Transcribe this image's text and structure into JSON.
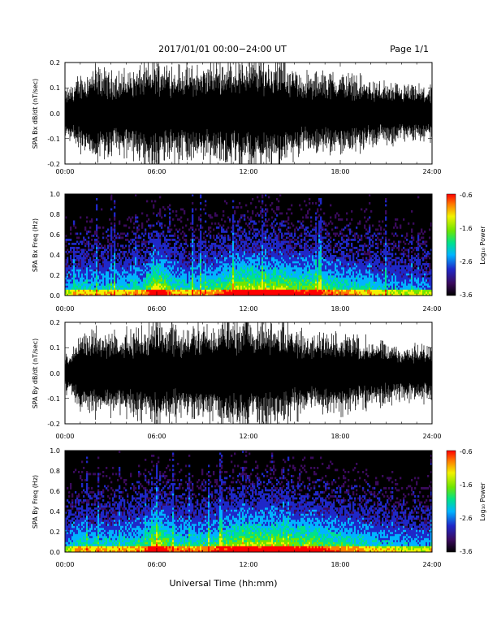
{
  "header": {
    "date_range": "2017/01/01  00:00−24:00 UT",
    "page": "Page 1/1"
  },
  "xlabel": "Universal Time (hh:mm)",
  "colors": {
    "waveform": "#000000",
    "spectrogram_background": "#000000",
    "colormap": [
      "#000000",
      "#3a0a5c",
      "#1f28c8",
      "#00b4ff",
      "#00e28a",
      "#6ee600",
      "#f2f200",
      "#ff7a00",
      "#ff0000"
    ]
  },
  "chart_data": [
    {
      "type": "line",
      "ylabel": "SPA Bx dB/dt (nT/sec)",
      "x_ticks": [
        "00:00",
        "06:00",
        "12:00",
        "18:00",
        "24:00"
      ],
      "xlim_hours": [
        0,
        24
      ],
      "ylim": [
        -0.2,
        0.2
      ],
      "y_ticks": [
        "-0.2",
        "-0.1",
        "0.0",
        "0.1",
        "0.2"
      ],
      "series": [
        {
          "x_hours": [
            0,
            1,
            2,
            3,
            4,
            5,
            6,
            7,
            8,
            9,
            10,
            11,
            12,
            13,
            14,
            15,
            16,
            17,
            18,
            19,
            20,
            21,
            22,
            23,
            24
          ],
          "amplitude": [
            0.08,
            0.14,
            0.17,
            0.15,
            0.15,
            0.17,
            0.2,
            0.18,
            0.17,
            0.17,
            0.19,
            0.2,
            0.2,
            0.2,
            0.2,
            0.16,
            0.14,
            0.15,
            0.15,
            0.14,
            0.12,
            0.11,
            0.1,
            0.1,
            0.1
          ]
        }
      ]
    },
    {
      "type": "heatmap",
      "ylabel": "SPA Bx Freq (Hz)",
      "x_ticks": [
        "00:00",
        "06:00",
        "12:00",
        "18:00",
        "24:00"
      ],
      "xlim_hours": [
        0,
        24
      ],
      "ylim": [
        0.0,
        1.0
      ],
      "y_ticks": [
        "0.0",
        "0.2",
        "0.4",
        "0.6",
        "0.8",
        "1.0"
      ],
      "colorbar": {
        "label": "Log₁₀ Power",
        "ticks": [
          "-0.6",
          "-1.6",
          "-2.6",
          "-3.6"
        ],
        "range": [
          -3.6,
          -0.6
        ]
      },
      "hourly_power_profile": [
        0.3,
        0.42,
        0.36,
        0.38,
        0.4,
        0.42,
        0.7,
        0.46,
        0.42,
        0.44,
        0.5,
        0.62,
        0.66,
        0.6,
        0.64,
        0.56,
        0.58,
        0.5,
        0.46,
        0.42,
        0.38,
        0.34,
        0.32,
        0.3,
        0.28
      ]
    },
    {
      "type": "line",
      "ylabel": "SPA By dB/dt (nT/sec)",
      "x_ticks": [
        "00:00",
        "06:00",
        "12:00",
        "18:00",
        "24:00"
      ],
      "xlim_hours": [
        0,
        24
      ],
      "ylim": [
        -0.2,
        0.2
      ],
      "y_ticks": [
        "-0.2",
        "-0.1",
        "0.0",
        "0.1",
        "0.2"
      ],
      "series": [
        {
          "x_hours": [
            0,
            1,
            2,
            3,
            4,
            5,
            6,
            7,
            8,
            9,
            10,
            11,
            12,
            13,
            14,
            15,
            16,
            17,
            18,
            19,
            20,
            21,
            22,
            23,
            24
          ],
          "amplitude": [
            0.07,
            0.13,
            0.16,
            0.15,
            0.15,
            0.17,
            0.2,
            0.18,
            0.17,
            0.17,
            0.19,
            0.2,
            0.2,
            0.2,
            0.2,
            0.16,
            0.14,
            0.15,
            0.15,
            0.14,
            0.12,
            0.11,
            0.1,
            0.1,
            0.1
          ]
        }
      ]
    },
    {
      "type": "heatmap",
      "ylabel": "SPA By Freq (Hz)",
      "x_ticks": [
        "00:00",
        "06:00",
        "12:00",
        "18:00",
        "24:00"
      ],
      "xlim_hours": [
        0,
        24
      ],
      "ylim": [
        0.0,
        1.0
      ],
      "y_ticks": [
        "0.0",
        "0.2",
        "0.4",
        "0.6",
        "0.8",
        "1.0"
      ],
      "colorbar": {
        "label": "Log₁₀ Power",
        "ticks": [
          "-0.6",
          "-1.6",
          "-2.6",
          "-3.6"
        ],
        "range": [
          -3.6,
          -0.6
        ]
      },
      "hourly_power_profile": [
        0.32,
        0.44,
        0.38,
        0.4,
        0.42,
        0.44,
        0.7,
        0.48,
        0.44,
        0.46,
        0.52,
        0.62,
        0.66,
        0.62,
        0.64,
        0.58,
        0.6,
        0.52,
        0.48,
        0.44,
        0.4,
        0.36,
        0.34,
        0.32,
        0.3
      ]
    }
  ]
}
